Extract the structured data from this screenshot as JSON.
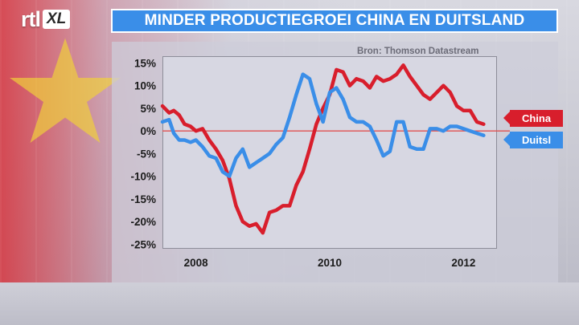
{
  "brand": {
    "logo_main": "rtl",
    "logo_sub": "XL"
  },
  "header": {
    "title": "MINDER PRODUCTIEGROEI CHINA EN DUITSLAND"
  },
  "source": "Bron: Thomson Datastream",
  "colors": {
    "china": "#d81e2c",
    "duitsland": "#3a8ee8",
    "zero_line": "#e05050",
    "title_bar": "#3a8ee8"
  },
  "chart_data": {
    "type": "line",
    "title": "MINDER PRODUCTIEGROEI CHINA EN DUITSLAND",
    "xlabel": "",
    "ylabel": "",
    "ylim": [
      -25,
      15
    ],
    "xlim": [
      2007.5,
      2012.5
    ],
    "yticks": [
      15,
      10,
      5,
      0,
      -5,
      -10,
      -15,
      -20,
      -25
    ],
    "ytick_labels": [
      "15%",
      "10%",
      "5%",
      "0%",
      "-5%",
      "-10%",
      "-15%",
      "-20%",
      "-25%"
    ],
    "xticks": [
      2008,
      2010,
      2012
    ],
    "xtick_labels": [
      "2008",
      "2010",
      "2012"
    ],
    "zero_line": true,
    "legend_position": "right",
    "series": [
      {
        "name": "China",
        "color": "#d81e2c",
        "x": [
          2007.5,
          2007.6,
          2007.67,
          2007.75,
          2007.83,
          2007.92,
          2008.0,
          2008.1,
          2008.2,
          2008.3,
          2008.4,
          2008.5,
          2008.6,
          2008.7,
          2008.8,
          2008.9,
          2009.0,
          2009.1,
          2009.2,
          2009.3,
          2009.4,
          2009.5,
          2009.6,
          2009.7,
          2009.8,
          2009.9,
          2010.0,
          2010.1,
          2010.2,
          2010.3,
          2010.4,
          2010.5,
          2010.6,
          2010.7,
          2010.8,
          2010.9,
          2011.0,
          2011.1,
          2011.2,
          2011.3,
          2011.4,
          2011.5,
          2011.6,
          2011.7,
          2011.8,
          2011.9,
          2012.0,
          2012.1,
          2012.2,
          2012.3
        ],
        "y": [
          5.5,
          4.0,
          4.5,
          3.5,
          1.5,
          1.0,
          0.0,
          0.5,
          -2.0,
          -4.0,
          -6.5,
          -10.5,
          -16.5,
          -20.0,
          -21.0,
          -20.5,
          -22.5,
          -18.0,
          -17.5,
          -16.5,
          -16.5,
          -12.0,
          -9.0,
          -4.0,
          1.5,
          5.0,
          8.0,
          13.5,
          13.0,
          10.0,
          11.5,
          11.0,
          9.5,
          12.0,
          11.0,
          11.5,
          12.5,
          14.5,
          12.0,
          10.0,
          8.0,
          7.0,
          8.5,
          10.0,
          8.5,
          5.5,
          4.5,
          4.5,
          2.0,
          1.5
        ]
      },
      {
        "name": "Duitsl",
        "color": "#3a8ee8",
        "x": [
          2007.5,
          2007.6,
          2007.67,
          2007.75,
          2007.83,
          2007.92,
          2008.0,
          2008.1,
          2008.2,
          2008.3,
          2008.4,
          2008.5,
          2008.6,
          2008.7,
          2008.8,
          2008.9,
          2009.0,
          2009.1,
          2009.2,
          2009.3,
          2009.4,
          2009.5,
          2009.6,
          2009.7,
          2009.8,
          2009.9,
          2010.0,
          2010.1,
          2010.2,
          2010.3,
          2010.4,
          2010.5,
          2010.6,
          2010.7,
          2010.8,
          2010.9,
          2011.0,
          2011.1,
          2011.2,
          2011.3,
          2011.4,
          2011.5,
          2011.6,
          2011.7,
          2011.8,
          2011.9,
          2012.0,
          2012.1,
          2012.2,
          2012.3
        ],
        "y": [
          2.0,
          2.5,
          -0.5,
          -2.0,
          -2.0,
          -2.5,
          -2.0,
          -3.5,
          -5.5,
          -6.0,
          -9.0,
          -10.0,
          -6.0,
          -4.0,
          -8.0,
          -7.0,
          -6.0,
          -5.0,
          -3.0,
          -1.5,
          3.0,
          8.0,
          12.5,
          11.5,
          6.0,
          2.0,
          8.5,
          9.5,
          7.0,
          3.0,
          2.0,
          2.0,
          1.0,
          -2.0,
          -5.5,
          -4.5,
          2.0,
          2.0,
          -3.5,
          -4.0,
          -4.0,
          0.5,
          0.5,
          0.0,
          1.0,
          1.0,
          0.5,
          0.0,
          -0.5,
          -1.0
        ]
      }
    ]
  }
}
